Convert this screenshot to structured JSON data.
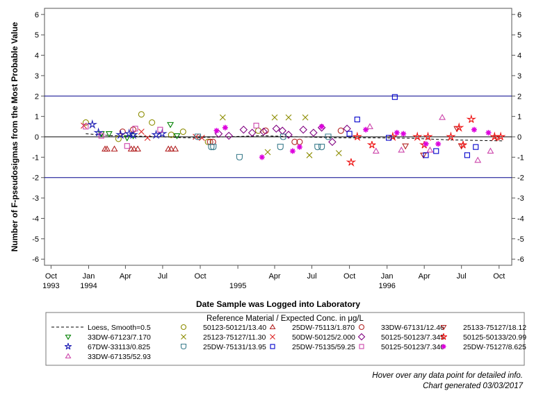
{
  "chart_data": {
    "type": "scatter",
    "title": "",
    "xlabel": "Date Sample was Logged into Laboratory",
    "ylabel": "Number of F-pseudosigmas from the Most Probable Value",
    "ylim": [
      -6.3,
      6.3
    ],
    "yticks": [
      -6,
      -5,
      -4,
      -3,
      -2,
      -1,
      0,
      1,
      2,
      3,
      4,
      5,
      6
    ],
    "xlim": [
      "1993-09-15",
      "1996-11-01"
    ],
    "xticks": [
      {
        "date": "1993-10-01",
        "label": "Oct",
        "year": "1993"
      },
      {
        "date": "1994-01-01",
        "label": "Jan",
        "year": "1994"
      },
      {
        "date": "1994-04-01",
        "label": "Apr",
        "year": ""
      },
      {
        "date": "1994-07-01",
        "label": "Jul",
        "year": ""
      },
      {
        "date": "1994-10-01",
        "label": "Oct",
        "year": ""
      },
      {
        "date": "1995-01-01",
        "label": "",
        "year": "1995"
      },
      {
        "date": "1995-04-01",
        "label": "Apr",
        "year": ""
      },
      {
        "date": "1995-07-01",
        "label": "Jul",
        "year": ""
      },
      {
        "date": "1995-10-01",
        "label": "Oct",
        "year": ""
      },
      {
        "date": "1996-01-01",
        "label": "Jan",
        "year": "1996"
      },
      {
        "date": "1996-04-01",
        "label": "Apr",
        "year": ""
      },
      {
        "date": "1996-07-01",
        "label": "Jul",
        "year": ""
      },
      {
        "date": "1996-10-01",
        "label": "Oct",
        "year": ""
      }
    ],
    "reference_lines": [
      2,
      -2
    ],
    "zero_line": 0,
    "legend_title": "Reference Material / Expected Conc. in μg/L",
    "legend_placement": "bottom",
    "loess": {
      "name": "Loess, Smooth=0.5",
      "x": [
        "1993-12-25",
        "1994-03-01",
        "1994-06-01",
        "1994-09-01",
        "1994-12-01",
        "1995-03-01",
        "1995-06-01",
        "1995-09-01",
        "1995-12-01",
        "1996-03-01",
        "1996-06-01",
        "1996-10-10"
      ],
      "y": [
        0.15,
        0.05,
        0.02,
        -0.05,
        0.0,
        0.05,
        0.0,
        -0.05,
        -0.05,
        -0.07,
        -0.15,
        -0.2
      ]
    },
    "series": [
      {
        "name": "50123-50121/13.40",
        "marker": "circle",
        "color": "#8c8c00",
        "x": [
          "1993-12-25",
          "1994-03-15",
          "1994-05-10",
          "1994-06-05",
          "1994-07-22",
          "1994-08-20",
          "1994-10-20",
          "1995-02-20"
        ],
        "y": [
          0.7,
          -0.1,
          1.1,
          0.7,
          0.1,
          0.25,
          -0.25,
          0.3
        ]
      },
      {
        "name": "25DW-75113/1.870",
        "marker": "triangle-up",
        "color": "#b22222",
        "x": [
          "1994-02-10",
          "1994-02-15",
          "1994-03-05",
          "1994-04-15",
          "1994-04-22",
          "1994-05-01",
          "1994-07-15",
          "1994-07-22",
          "1994-08-01"
        ],
        "y": [
          -0.6,
          -0.6,
          -0.6,
          -0.6,
          -0.6,
          -0.6,
          -0.6,
          -0.6,
          -0.6
        ]
      },
      {
        "name": "33DW-67131/12.46",
        "marker": "circle",
        "color": "#b22222",
        "x": [
          "1994-03-25",
          "1994-04-20",
          "1994-10-25",
          "1994-11-01",
          "1995-03-10",
          "1995-05-20",
          "1995-06-01",
          "1995-09-10"
        ],
        "y": [
          0.25,
          0.35,
          -0.25,
          -0.25,
          0.3,
          -0.25,
          -0.25,
          0.3
        ]
      },
      {
        "name": "25133-75127/18.12",
        "marker": "triangle-down",
        "color": "#b22222",
        "x": [
          "1996-02-15",
          "1996-03-30",
          "1996-06-20",
          "1996-07-01",
          "1996-09-25"
        ],
        "y": [
          -0.45,
          -0.9,
          0.4,
          -0.45,
          -0.05
        ]
      },
      {
        "name": "33DW-67123/7.170",
        "marker": "triangle-down",
        "color": "#008000",
        "x": [
          "1994-02-01",
          "1994-02-20",
          "1994-04-05",
          "1994-04-20",
          "1994-07-20",
          "1994-08-05"
        ],
        "y": [
          0.15,
          0.15,
          -0.05,
          0.05,
          0.6,
          0.05
        ]
      },
      {
        "name": "25123-75127/11.30",
        "marker": "x",
        "color": "#8c8c00",
        "x": [
          "1994-11-25",
          "1995-03-15",
          "1995-04-01",
          "1995-05-05",
          "1995-06-15",
          "1995-06-25",
          "1995-09-05"
        ],
        "y": [
          0.95,
          -0.75,
          0.95,
          0.95,
          0.95,
          -0.9,
          -0.8
        ]
      },
      {
        "name": "50DW-50125/2.000",
        "marker": "x",
        "color": "#dd2222",
        "x": [
          "1993-12-20",
          "1994-05-10",
          "1994-05-25",
          "1994-09-20",
          "1994-10-05"
        ],
        "y": [
          0.55,
          0.25,
          -0.05,
          0.0,
          -0.05
        ]
      },
      {
        "name": "50125-50123/7.345",
        "marker": "diamond",
        "color": "#800080",
        "x": [
          "1994-11-15",
          "1994-12-10",
          "1995-01-15",
          "1995-02-05",
          "1995-03-05",
          "1995-04-05",
          "1995-04-20",
          "1995-05-05",
          "1995-06-10",
          "1995-07-05",
          "1995-07-25",
          "1995-08-20",
          "1995-09-25"
        ],
        "y": [
          0.15,
          0.05,
          0.35,
          0.2,
          0.25,
          0.4,
          0.3,
          0.1,
          0.35,
          0.2,
          0.45,
          -0.25,
          0.4
        ]
      },
      {
        "name": "50125-50133/20.99",
        "marker": "star",
        "color": "#ee1111",
        "x": [
          "1995-10-05",
          "1995-10-20",
          "1995-11-25",
          "1996-01-15",
          "1996-03-15",
          "1996-04-01",
          "1996-04-10",
          "1996-06-05",
          "1996-06-25",
          "1996-07-05",
          "1996-07-25",
          "1996-09-20",
          "1996-10-05"
        ],
        "y": [
          -1.25,
          0.0,
          -0.4,
          0.0,
          0.0,
          -0.4,
          0.0,
          0.0,
          0.45,
          -0.4,
          0.85,
          0.0,
          0.0
        ]
      },
      {
        "name": "67DW-33113/0.825",
        "marker": "star",
        "color": "#1e1eb4",
        "x": [
          "1994-01-10",
          "1994-01-25",
          "1994-03-20",
          "1994-04-10",
          "1994-04-20",
          "1994-06-15",
          "1994-06-30"
        ],
        "y": [
          0.6,
          0.2,
          0.1,
          0.15,
          0.1,
          0.1,
          0.15
        ]
      },
      {
        "name": "25DW-75131/13.95",
        "marker": "shield",
        "color": "#3a7c8c",
        "x": [
          "1994-09-25",
          "1994-10-28",
          "1994-11-02",
          "1995-01-05",
          "1995-04-15",
          "1995-04-22",
          "1995-07-15",
          "1995-07-25",
          "1995-08-10"
        ],
        "y": [
          0.0,
          -0.5,
          -0.5,
          -1.0,
          -0.5,
          0.0,
          -0.5,
          -0.5,
          0.0
        ]
      },
      {
        "name": "25DW-75135/59.25",
        "marker": "square",
        "color": "#0000cc",
        "x": [
          "1995-10-01",
          "1995-10-20",
          "1996-01-05",
          "1996-01-20",
          "1996-04-05",
          "1996-04-30",
          "1996-07-15",
          "1996-08-05"
        ],
        "y": [
          0.15,
          0.85,
          -0.05,
          1.95,
          -0.9,
          -0.7,
          -0.9,
          -0.5
        ]
      },
      {
        "name": "50125-50123/7.340",
        "marker": "square",
        "color": "#cc44aa",
        "x": [
          "1993-12-25",
          "1994-02-01",
          "1994-04-05",
          "1994-04-25",
          "1994-06-25",
          "1995-02-15"
        ],
        "y": [
          0.5,
          0.05,
          -0.45,
          0.4,
          0.35,
          0.55
        ]
      },
      {
        "name": "25DW-75127/8.625",
        "marker": "asterisk",
        "color": "#dd00dd",
        "x": [
          "1994-11-10",
          "1994-12-01",
          "1995-03-01",
          "1995-05-15",
          "1995-06-01",
          "1995-07-25",
          "1995-11-10",
          "1996-01-25",
          "1996-02-10",
          "1996-04-05",
          "1996-05-05",
          "1996-08-01",
          "1996-09-05"
        ],
        "y": [
          0.3,
          0.45,
          -1.0,
          -0.7,
          -0.5,
          0.5,
          0.35,
          0.2,
          0.15,
          -0.35,
          -0.35,
          0.35,
          0.2
        ]
      },
      {
        "name": "33DW-67135/52.93",
        "marker": "triangle-up",
        "color": "#cc44aa",
        "x": [
          "1995-11-20",
          "1995-12-05",
          "1996-02-05",
          "1996-04-15",
          "1996-05-15",
          "1996-08-10",
          "1996-09-10"
        ],
        "y": [
          0.5,
          -0.7,
          -0.65,
          -0.65,
          0.95,
          -1.15,
          -0.7
        ]
      }
    ]
  },
  "notes": {
    "hover": "Hover over any data point for detailed info.",
    "generated": "Chart generated 03/03/2017"
  }
}
